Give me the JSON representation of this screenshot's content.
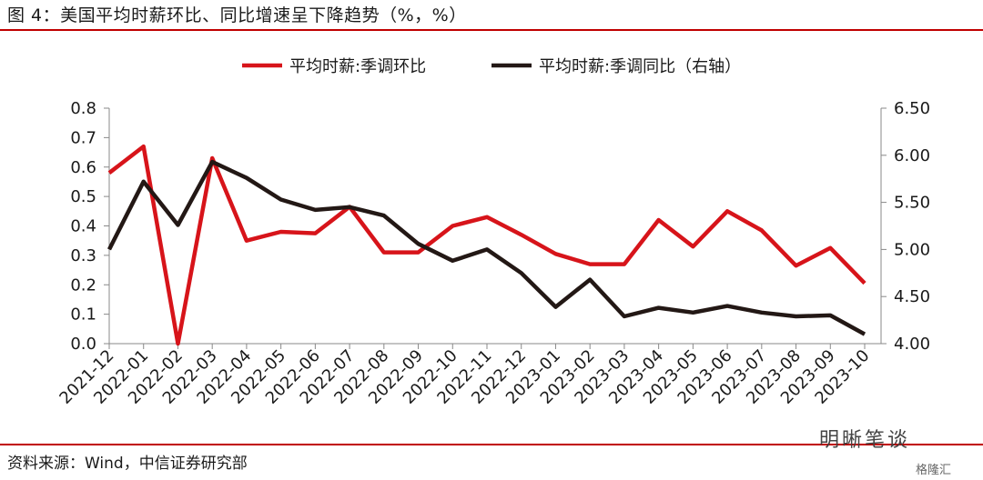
{
  "header": {
    "title": "图 4：美国平均时薪环比、同比增速呈下降趋势（%，%）"
  },
  "footer": {
    "source": "资料来源：Wind，中信证券研究部"
  },
  "watermark": {
    "account": "明晰笔谈",
    "site": "格隆汇"
  },
  "colors": {
    "red": "#d7141a",
    "black": "#231815",
    "rule": "#c00000"
  },
  "chart_data": {
    "type": "line",
    "title": "",
    "legend_position": "top",
    "categories": [
      "2021-12",
      "2022-01",
      "2022-02",
      "2022-03",
      "2022-04",
      "2022-05",
      "2022-06",
      "2022-07",
      "2022-08",
      "2022-09",
      "2022-10",
      "2022-11",
      "2022-12",
      "2023-01",
      "2023-02",
      "2023-03",
      "2023-04",
      "2023-05",
      "2023-06",
      "2023-07",
      "2023-08",
      "2023-09",
      "2023-10"
    ],
    "y_left": {
      "lim": [
        0.0,
        0.8
      ],
      "ticks": [
        "0.0",
        "0.1",
        "0.2",
        "0.3",
        "0.4",
        "0.5",
        "0.6",
        "0.7",
        "0.8"
      ]
    },
    "y_right": {
      "lim": [
        4.0,
        6.5
      ],
      "ticks": [
        "4.00",
        "4.50",
        "5.00",
        "5.50",
        "6.00",
        "6.50"
      ]
    },
    "series": [
      {
        "name": "平均时薪:季调环比",
        "axis": "left",
        "color": "#d7141a",
        "values": [
          0.58,
          0.67,
          0.0,
          0.63,
          0.35,
          0.38,
          0.375,
          0.465,
          0.31,
          0.31,
          0.4,
          0.43,
          0.37,
          0.305,
          0.27,
          0.27,
          0.42,
          0.33,
          0.45,
          0.385,
          0.265,
          0.325,
          0.205
        ]
      },
      {
        "name": "平均时薪:季调同比（右轴）",
        "axis": "right",
        "color": "#231815",
        "values": [
          5.0,
          5.72,
          5.26,
          5.93,
          5.76,
          5.53,
          5.42,
          5.45,
          5.36,
          5.06,
          4.88,
          5.0,
          4.75,
          4.39,
          4.68,
          4.29,
          4.38,
          4.33,
          4.4,
          4.33,
          4.29,
          4.3,
          4.1
        ]
      }
    ]
  }
}
